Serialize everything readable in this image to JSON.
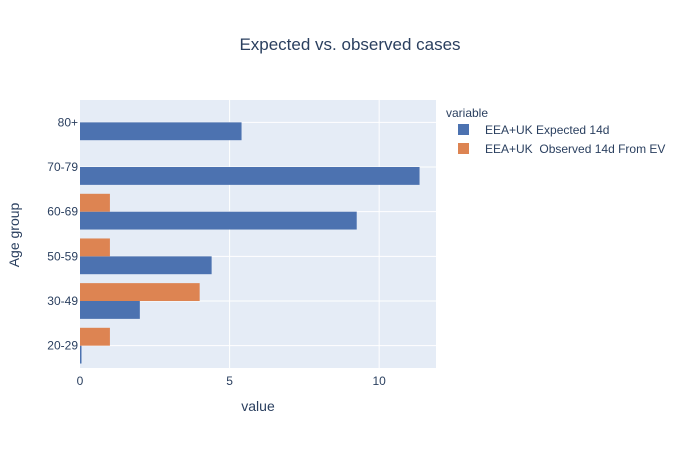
{
  "chart_data": {
    "type": "bar",
    "orientation": "horizontal",
    "title": "Expected vs. observed cases",
    "xlabel": "value",
    "ylabel": "Age group",
    "categories": [
      "20-29",
      "30-49",
      "50-59",
      "60-69",
      "70-79",
      "80+"
    ],
    "xlim": [
      0,
      11.9
    ],
    "xticks": [
      0,
      5,
      10
    ],
    "grid": true,
    "legend_title": "variable",
    "legend_position": "top-right",
    "series": [
      {
        "name": "EEA+UK Expected 14d",
        "color": "#4c72b0",
        "values": [
          0.05,
          2.0,
          4.4,
          9.25,
          11.35,
          5.4
        ]
      },
      {
        "name": "EEA+UK  Observed 14d From EV",
        "color": "#dd8452",
        "values": [
          1,
          4,
          1,
          1,
          0,
          0
        ]
      }
    ]
  }
}
